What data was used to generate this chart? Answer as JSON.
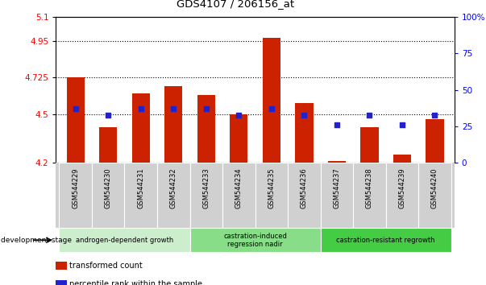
{
  "title": "GDS4107 / 206156_at",
  "categories": [
    "GSM544229",
    "GSM544230",
    "GSM544231",
    "GSM544232",
    "GSM544233",
    "GSM544234",
    "GSM544235",
    "GSM544236",
    "GSM544237",
    "GSM544238",
    "GSM544239",
    "GSM544240"
  ],
  "bar_values": [
    4.725,
    4.42,
    4.63,
    4.67,
    4.62,
    4.5,
    4.97,
    4.57,
    4.21,
    4.42,
    4.25,
    4.47
  ],
  "dot_values": [
    4.535,
    4.495,
    4.535,
    4.535,
    4.535,
    4.495,
    4.535,
    4.495,
    4.435,
    4.495,
    4.435,
    4.495
  ],
  "y_min": 4.2,
  "y_max": 5.1,
  "y_ticks_left": [
    4.2,
    4.5,
    4.725,
    4.95,
    5.1
  ],
  "y_ticks_left_labels": [
    "4.2",
    "4.5",
    "4.725",
    "4.95",
    "5.1"
  ],
  "right_ticks_pct": [
    0,
    25,
    50,
    75,
    100
  ],
  "right_ticks_labels": [
    "0",
    "25",
    "50",
    "75",
    "100%"
  ],
  "dotted_lines": [
    4.5,
    4.725,
    4.95
  ],
  "bar_color": "#cc2200",
  "dot_color": "#2222cc",
  "groups": [
    {
      "label": "androgen-dependent growth",
      "start": 0,
      "end": 3,
      "color": "#cceecc"
    },
    {
      "label": "castration-induced\nregression nadir",
      "start": 4,
      "end": 7,
      "color": "#88dd88"
    },
    {
      "label": "castration-resistant regrowth",
      "start": 8,
      "end": 11,
      "color": "#44cc44"
    }
  ],
  "legend_items": [
    {
      "color": "#cc2200",
      "label": "transformed count"
    },
    {
      "color": "#2222cc",
      "label": "percentile rank within the sample"
    }
  ],
  "dev_stage_label": "development stage",
  "bar_width": 0.55
}
